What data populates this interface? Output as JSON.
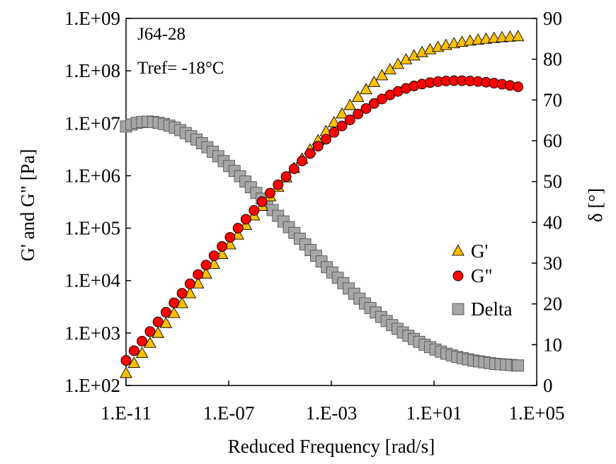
{
  "chart_data": {
    "type": "scatter",
    "annotation": [
      "J64-28",
      "Tref= -18°C"
    ],
    "xlabel": "Reduced Frequency [rad/s]",
    "ylabel_left": "G' and G\" [Pa]",
    "ylabel_right": "δ [°]",
    "x_scale": "log",
    "y_left_scale": "log",
    "y_right_scale": "linear",
    "xlim": [
      1e-11,
      100000
    ],
    "ylim_left": [
      100,
      1000000000
    ],
    "ylim_right": [
      0,
      90
    ],
    "x_ticks": [
      1e-11,
      1e-07,
      0.001,
      10,
      100000
    ],
    "x_tick_labels": [
      "1.E-11",
      "1.E-07",
      "1.E-03",
      "1.E+01",
      "1.E+05"
    ],
    "y_left_ticks": [
      100,
      1000,
      10000,
      100000,
      1000000,
      10000000,
      100000000,
      1000000000
    ],
    "y_left_tick_labels": [
      "1.E+02",
      "1.E+03",
      "1.E+04",
      "1.E+05",
      "1.E+06",
      "1.E+07",
      "1.E+08",
      "1.E+09"
    ],
    "y_right_ticks": [
      0,
      10,
      20,
      30,
      40,
      50,
      60,
      70,
      80,
      90
    ],
    "y_right_tick_labels": [
      "0",
      "10",
      "20",
      "30",
      "40",
      "50",
      "60",
      "70",
      "80",
      "90"
    ],
    "grid": false,
    "legend_position": "right-middle",
    "series": [
      {
        "name": "G'",
        "axis": "left",
        "marker": "triangle",
        "color": "#FFC000",
        "x": [
          1e-11,
          2.05e-11,
          4.2e-11,
          8.6e-11,
          1.76e-10,
          3.6e-10,
          7.4e-10,
          1.52e-09,
          3.1e-09,
          6.4e-09,
          1.31e-08,
          2.68e-08,
          5.5e-08,
          1.13e-07,
          2.31e-07,
          4.7e-07,
          9.7e-07,
          1.99e-06,
          4.1e-06,
          8.4e-06,
          1.72e-05,
          3.5e-05,
          7.2e-05,
          0.000148,
          0.000303,
          0.00062,
          0.00127,
          0.0026,
          0.0053,
          0.0109,
          0.0224,
          0.046,
          0.094,
          0.193,
          0.395,
          0.81,
          1.66,
          3.4,
          7.0,
          14.3,
          29.3,
          60,
          123,
          253,
          518,
          1062,
          2177,
          4462,
          9146,
          18750
        ],
        "y": [
          170,
          265,
          410,
          640,
          990,
          1530,
          2370,
          3660,
          5650,
          8700,
          13400,
          20600,
          31600,
          48400,
          74000,
          113000,
          172000,
          262000,
          398000,
          603000,
          912000,
          1380000,
          2080000,
          3120000,
          4670000,
          6960000,
          10300000,
          15100000,
          21900000,
          31200000,
          43800000,
          60200000,
          80800000,
          105000000,
          133000000,
          163000000,
          193000000,
          224000000,
          253000000,
          281000000,
          306000000,
          330000000,
          351000000,
          370000000,
          387000000,
          403000000,
          417000000,
          430000000,
          441000000,
          450000000
        ]
      },
      {
        "name": "G\"",
        "axis": "left",
        "marker": "circle",
        "color": "#FF0000",
        "x": [
          1e-11,
          2.05e-11,
          4.2e-11,
          8.6e-11,
          1.76e-10,
          3.6e-10,
          7.4e-10,
          1.52e-09,
          3.1e-09,
          6.4e-09,
          1.31e-08,
          2.68e-08,
          5.5e-08,
          1.13e-07,
          2.31e-07,
          4.7e-07,
          9.7e-07,
          1.99e-06,
          4.1e-06,
          8.4e-06,
          1.72e-05,
          3.5e-05,
          7.2e-05,
          0.000148,
          0.000303,
          0.00062,
          0.00127,
          0.0026,
          0.0053,
          0.0109,
          0.0224,
          0.046,
          0.094,
          0.193,
          0.395,
          0.81,
          1.66,
          3.4,
          7.0,
          14.3,
          29.3,
          60,
          123,
          253,
          518,
          1062,
          2177,
          4462,
          9146,
          18750
        ],
        "y": [
          300,
          460,
          700,
          1070,
          1630,
          2490,
          3780,
          5740,
          8700,
          13100,
          19800,
          29800,
          44700,
          66900,
          99800,
          148000,
          218000,
          320000,
          466000,
          673000,
          962000,
          1360000,
          1910000,
          2650000,
          3650000,
          4970000,
          6690000,
          8890000,
          11600000,
          15000000,
          19100000,
          23800000,
          29000000,
          34700000,
          40500000,
          46200000,
          51500000,
          56000000,
          59600000,
          62300000,
          64000000,
          64800000,
          64800000,
          64000000,
          62600000,
          60600000,
          58200000,
          55500000,
          52600000,
          49600000
        ]
      },
      {
        "name": "Delta",
        "axis": "right",
        "marker": "square",
        "color": "#A6A6A6",
        "x": [
          1e-11,
          1.62e-11,
          2.64e-11,
          4.3e-11,
          7e-11,
          1.14e-10,
          1.85e-10,
          3.01e-10,
          4.9e-10,
          7.98e-10,
          1.3e-09,
          2.11e-09,
          3.44e-09,
          5.6e-09,
          9.1e-09,
          1.48e-08,
          2.41e-08,
          3.93e-08,
          6.4e-08,
          1.04e-07,
          1.69e-07,
          2.76e-07,
          4.49e-07,
          7.3e-07,
          1.19e-06,
          1.94e-06,
          3.15e-06,
          5.13e-06,
          8.4e-06,
          1.36e-05,
          2.22e-05,
          3.61e-05,
          5.9e-05,
          9.6e-05,
          0.000156,
          0.000254,
          0.000413,
          0.00067,
          0.00109,
          0.00178,
          0.0029,
          0.00472,
          0.0077,
          0.0125,
          0.0203,
          0.0331,
          0.0539,
          0.0877,
          0.143,
          0.232,
          0.378,
          0.615,
          1.0,
          1.63,
          2.65,
          4.31,
          7.0,
          11.4,
          18.6,
          30.2,
          49.2,
          80.1,
          130,
          212,
          345,
          562,
          914,
          1488,
          2420,
          3940,
          6410,
          10400,
          17000,
          18750
        ],
        "y": [
          63.5,
          64.0,
          64.4,
          64.6,
          64.7,
          64.6,
          64.4,
          64.1,
          63.7,
          63.2,
          62.6,
          61.9,
          61.1,
          60.3,
          59.4,
          58.4,
          57.3,
          56.2,
          55.0,
          53.8,
          52.6,
          51.3,
          50.0,
          48.6,
          47.2,
          45.8,
          44.4,
          43.0,
          41.6,
          40.2,
          38.8,
          37.4,
          36.0,
          34.6,
          33.2,
          31.8,
          30.4,
          29.0,
          27.7,
          26.4,
          25.1,
          23.8,
          22.5,
          21.3,
          20.1,
          19.0,
          17.9,
          16.8,
          15.8,
          14.8,
          13.9,
          13.0,
          12.2,
          11.4,
          10.7,
          10.0,
          9.4,
          8.8,
          8.3,
          7.8,
          7.4,
          7.0,
          6.7,
          6.4,
          6.1,
          5.9,
          5.7,
          5.5,
          5.3,
          5.2,
          5.1,
          5.0,
          4.9,
          4.9
        ]
      }
    ]
  }
}
